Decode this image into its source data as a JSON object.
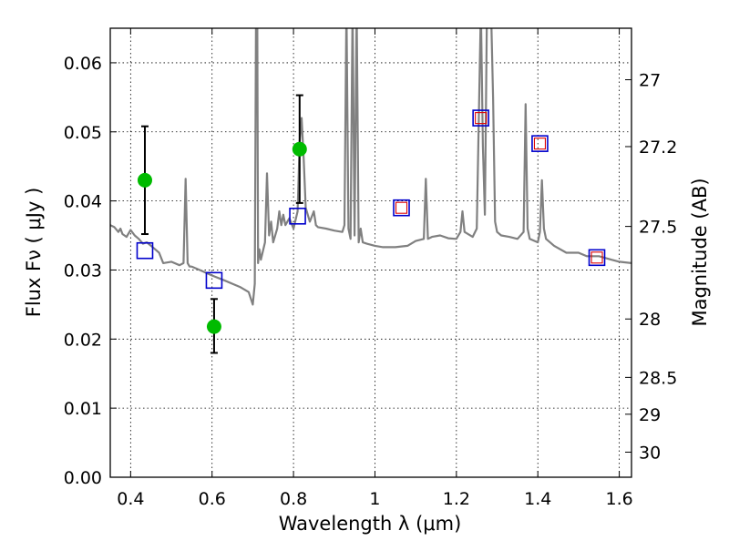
{
  "chart_data": {
    "type": "scatter",
    "title": "",
    "xlabel": "Wavelength  λ (μm)",
    "ylabel": "Flux  Fν  ( μJy )",
    "y2label": "Magnitude (AB)",
    "xlim": [
      0.35,
      1.63
    ],
    "ylim": [
      0.0,
      0.065
    ],
    "grid": true,
    "x_ticks": [
      0.4,
      0.6,
      0.8,
      1.0,
      1.2,
      1.4,
      1.6
    ],
    "x_tick_labels": [
      "0.4",
      "0.6",
      "0.8",
      "1",
      "1.2",
      "1.4",
      "1.6"
    ],
    "y_ticks": [
      0.0,
      0.01,
      0.02,
      0.03,
      0.04,
      0.05,
      0.06
    ],
    "y_tick_labels": [
      "0.00",
      "0.01",
      "0.02",
      "0.03",
      "0.04",
      "0.05",
      "0.06"
    ],
    "y2_tick_labels": [
      "27",
      "27.2",
      "27.5",
      "28",
      "28.5",
      "29",
      "30"
    ],
    "colors": {
      "spectrum": "#808080",
      "observed": "#00bb00",
      "model_bands": "#0000cc",
      "model_inner": "#dd0000",
      "errorbar": "#000000"
    },
    "series": [
      {
        "kind": "spectrum-line",
        "x": [
          0.35,
          0.36,
          0.37,
          0.375,
          0.38,
          0.39,
          0.4,
          0.41,
          0.42,
          0.43,
          0.44,
          0.45,
          0.46,
          0.47,
          0.48,
          0.5,
          0.52,
          0.53,
          0.535,
          0.54,
          0.545,
          0.55,
          0.57,
          0.6,
          0.63,
          0.65,
          0.67,
          0.69,
          0.7,
          0.705,
          0.708,
          0.711,
          0.713,
          0.716,
          0.72,
          0.73,
          0.735,
          0.74,
          0.745,
          0.75,
          0.76,
          0.765,
          0.77,
          0.775,
          0.78,
          0.79,
          0.8,
          0.81,
          0.815,
          0.82,
          0.825,
          0.83,
          0.84,
          0.85,
          0.855,
          0.86,
          0.88,
          0.9,
          0.92,
          0.925,
          0.93,
          0.935,
          0.94,
          0.945,
          0.95,
          0.955,
          0.96,
          0.965,
          0.97,
          0.98,
          1.0,
          1.02,
          1.05,
          1.08,
          1.1,
          1.12,
          1.125,
          1.13,
          1.14,
          1.16,
          1.18,
          1.2,
          1.21,
          1.215,
          1.22,
          1.24,
          1.25,
          1.26,
          1.265,
          1.27,
          1.275,
          1.28,
          1.285,
          1.29,
          1.295,
          1.3,
          1.31,
          1.33,
          1.35,
          1.365,
          1.37,
          1.375,
          1.38,
          1.4,
          1.405,
          1.41,
          1.415,
          1.42,
          1.44,
          1.47,
          1.5,
          1.52,
          1.55,
          1.58,
          1.6,
          1.63
        ],
        "y": [
          0.0365,
          0.0362,
          0.0355,
          0.036,
          0.0352,
          0.0348,
          0.0358,
          0.035,
          0.0345,
          0.0338,
          0.034,
          0.0335,
          0.033,
          0.0325,
          0.031,
          0.0312,
          0.0307,
          0.031,
          0.0432,
          0.031,
          0.0305,
          0.0305,
          0.03,
          0.0292,
          0.0285,
          0.028,
          0.0275,
          0.0268,
          0.025,
          0.028,
          0.068,
          0.068,
          0.031,
          0.033,
          0.0315,
          0.034,
          0.044,
          0.035,
          0.037,
          0.034,
          0.036,
          0.0385,
          0.0365,
          0.038,
          0.0365,
          0.0375,
          0.036,
          0.0385,
          0.0485,
          0.052,
          0.046,
          0.039,
          0.037,
          0.0385,
          0.0365,
          0.0362,
          0.036,
          0.0357,
          0.0355,
          0.0365,
          0.068,
          0.036,
          0.0345,
          0.068,
          0.035,
          0.068,
          0.034,
          0.036,
          0.034,
          0.0338,
          0.0335,
          0.0333,
          0.0333,
          0.0335,
          0.0342,
          0.0345,
          0.0432,
          0.0345,
          0.0348,
          0.035,
          0.0346,
          0.0345,
          0.0355,
          0.0385,
          0.0355,
          0.0348,
          0.036,
          0.068,
          0.048,
          0.038,
          0.068,
          0.068,
          0.068,
          0.055,
          0.037,
          0.0355,
          0.035,
          0.0348,
          0.0345,
          0.0355,
          0.054,
          0.036,
          0.0345,
          0.034,
          0.0355,
          0.043,
          0.036,
          0.0345,
          0.0335,
          0.0325,
          0.0325,
          0.032,
          0.032,
          0.0315,
          0.0312,
          0.031
        ]
      },
      {
        "kind": "model-band-squares",
        "x": [
          0.435,
          0.605,
          0.81
        ],
        "y": [
          0.0328,
          0.0285,
          0.0378
        ]
      },
      {
        "kind": "model-band-squares-with-inner",
        "x": [
          1.065,
          1.26,
          1.405,
          1.545
        ],
        "y": [
          0.039,
          0.052,
          0.0483,
          0.0318
        ]
      },
      {
        "kind": "observed-points",
        "x": [
          0.435,
          0.605,
          0.815
        ],
        "y": [
          0.043,
          0.0218,
          0.0475
        ],
        "err_low": [
          0.0078,
          0.0038,
          0.0078
        ],
        "err_high": [
          0.0078,
          0.004,
          0.0078
        ]
      }
    ]
  }
}
